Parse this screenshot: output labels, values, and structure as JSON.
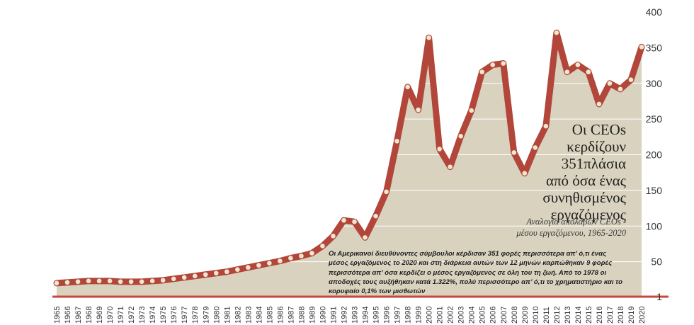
{
  "colors": {
    "line": "#b2463a",
    "area": "#d9d2bf",
    "marker": "#f0e7cf",
    "baseline": "#c9473b",
    "gridline": "#ffffff",
    "text": "#1f1f1f"
  },
  "title_lines": [
    "Οι CEOs",
    "κερδίζουν",
    "351πλάσια",
    "από όσα ένας",
    "συνηθισμένος",
    "εργαζόμενος"
  ],
  "subtitle_lines": [
    "Αναλογία απολαβών CEOs -",
    "μέσου εργαζόμενου, 1965-2020"
  ],
  "note": "Οι Αμερικανοί διευθύνοντες σύμβουλοι κέρδισαν 351 φορές περισσότερα απ’ ό,τι ένας μέσος εργαζόμενος το 2020 και στη διάρκεια αυτών των 12 μηνών καρπώθηκαν 9 φορές περισσότερα απ’ όσα κερδίζει ο μέσος εργαζόμενος σε όλη του τη ζωή. Από το 1978 οι αποδοχές τους αυξήθηκαν κατά 1.322%, πολύ περισσότερο απ’ ό,τι το χρηματιστήριο και το κορυφαίο 0,1% των μισθωτών",
  "chart_data": {
    "type": "area",
    "title": "Οι CEOs κερδίζουν 351πλάσια από όσα ένας συνηθισμένος εργαζόμενος",
    "subtitle": "Αναλογία απολαβών CEOs - μέσου εργαζόμενου, 1965-2020",
    "x": [
      1965,
      1966,
      1967,
      1968,
      1969,
      1970,
      1971,
      1972,
      1973,
      1974,
      1975,
      1976,
      1977,
      1978,
      1979,
      1980,
      1981,
      1982,
      1983,
      1984,
      1985,
      1986,
      1987,
      1988,
      1989,
      1990,
      1991,
      1992,
      1993,
      1994,
      1995,
      1996,
      1997,
      1998,
      1999,
      2000,
      2001,
      2002,
      2003,
      2004,
      2005,
      2006,
      2007,
      2008,
      2009,
      2010,
      2011,
      2012,
      2013,
      2014,
      2015,
      2016,
      2017,
      2018,
      2019,
      2020
    ],
    "y": [
      20,
      21,
      22,
      23,
      23,
      23,
      22,
      22,
      22,
      23,
      24,
      26,
      28,
      30,
      32,
      34,
      36,
      39,
      42,
      45,
      48,
      51,
      55,
      58,
      62,
      72,
      86,
      108,
      106,
      84,
      114,
      148,
      219,
      295,
      263,
      364,
      208,
      183,
      226,
      262,
      316,
      326,
      328,
      203,
      174,
      210,
      240,
      371,
      316,
      326,
      316,
      271,
      300,
      292,
      305,
      351
    ],
    "yticks": [
      50,
      100,
      150,
      200,
      250,
      300,
      350,
      400
    ],
    "ytick_labels": [
      "50",
      "100",
      "150",
      "200",
      "250",
      "300",
      "350",
      "400"
    ],
    "baseline_label": "1",
    "ylim": [
      1,
      400
    ],
    "xlim": [
      1965,
      2020
    ],
    "grid": true,
    "xlabel": "",
    "ylabel": ""
  }
}
